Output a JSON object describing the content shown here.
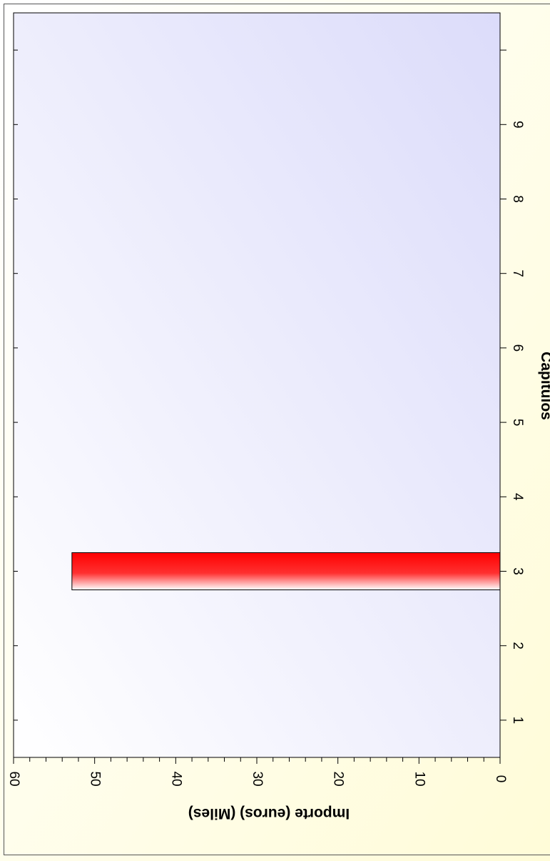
{
  "chart_data": {
    "type": "bar",
    "orientation": "rotated-90",
    "categories": [
      "1",
      "2",
      "3",
      "4",
      "5",
      "6",
      "7",
      "8",
      "9"
    ],
    "values": [
      0,
      0,
      52.8,
      0,
      0,
      0,
      0,
      0,
      0
    ],
    "xlabel": "Capítulos",
    "ylabel": "Importe (euros) (Miles)",
    "ylim": [
      0,
      60
    ],
    "xlim": [
      0.5,
      10.5
    ],
    "yticks": [
      "0",
      "10",
      "20",
      "30",
      "40",
      "50",
      "60"
    ],
    "grid": false,
    "bar_color": "#ff0000",
    "plot_background": "#dcdcfa",
    "page_background": "#fffcd8"
  }
}
